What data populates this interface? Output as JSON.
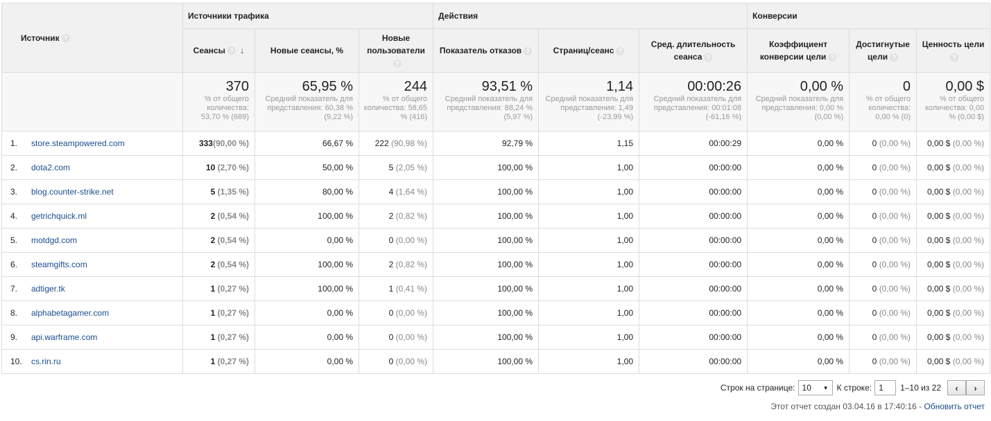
{
  "groups": {
    "source": "Источник",
    "traffic": "Источники трафика",
    "actions": "Действия",
    "conversions": "Конверсии"
  },
  "columns": [
    "Сеансы",
    "Новые сеансы, %",
    "Новые пользователи",
    "Показатель отказов",
    "Страниц/сеанс",
    "Сред. длительность сеанса",
    "Коэффициент конверсии цели",
    "Достигнутые цели",
    "Ценность цели"
  ],
  "totals": [
    {
      "big": "370",
      "sub": "% от общего количества: 53,70 % (689)"
    },
    {
      "big": "65,95 %",
      "sub": "Средний показатель для представления: 60,38 % (9,22 %)"
    },
    {
      "big": "244",
      "sub": "% от общего количества: 58,65 % (416)"
    },
    {
      "big": "93,51 %",
      "sub": "Средний показатель для представления: 88,24 % (5,97 %)"
    },
    {
      "big": "1,14",
      "sub": "Средний показатель для представления: 1,49 (-23,99 %)"
    },
    {
      "big": "00:00:26",
      "sub": "Средний показатель для представления: 00:01:08 (-61,16 %)"
    },
    {
      "big": "0,00 %",
      "sub": "Средний показатель для представления: 0,00 % (0,00 %)"
    },
    {
      "big": "0",
      "sub": "% от общего количества: 0,00 % (0)"
    },
    {
      "big": "0,00 $",
      "sub": "% от общего количества: 0,00 % (0,00 $)"
    }
  ],
  "rows": [
    {
      "num": "1.",
      "source": "store.steampowered.com",
      "sessions": "333",
      "sessions_pct": "(90,00 %)",
      "new_sessions": "66,67 %",
      "new_users": "222",
      "new_users_pct": "(90,98 %)",
      "bounce": "92,79 %",
      "pages": "1,15",
      "duration": "00:00:29",
      "conv": "0,00 %",
      "goals": "0",
      "goals_pct": "(0,00 %)",
      "value": "0,00 $",
      "value_pct": "(0,00 %)"
    },
    {
      "num": "2.",
      "source": "dota2.com",
      "sessions": "10",
      "sessions_pct": "(2,70 %)",
      "new_sessions": "50,00 %",
      "new_users": "5",
      "new_users_pct": "(2,05 %)",
      "bounce": "100,00 %",
      "pages": "1,00",
      "duration": "00:00:00",
      "conv": "0,00 %",
      "goals": "0",
      "goals_pct": "(0,00 %)",
      "value": "0,00 $",
      "value_pct": "(0,00 %)"
    },
    {
      "num": "3.",
      "source": "blog.counter-strike.net",
      "sessions": "5",
      "sessions_pct": "(1,35 %)",
      "new_sessions": "80,00 %",
      "new_users": "4",
      "new_users_pct": "(1,64 %)",
      "bounce": "100,00 %",
      "pages": "1,00",
      "duration": "00:00:00",
      "conv": "0,00 %",
      "goals": "0",
      "goals_pct": "(0,00 %)",
      "value": "0,00 $",
      "value_pct": "(0,00 %)"
    },
    {
      "num": "4.",
      "source": "getrichquick.ml",
      "sessions": "2",
      "sessions_pct": "(0,54 %)",
      "new_sessions": "100,00 %",
      "new_users": "2",
      "new_users_pct": "(0,82 %)",
      "bounce": "100,00 %",
      "pages": "1,00",
      "duration": "00:00:00",
      "conv": "0,00 %",
      "goals": "0",
      "goals_pct": "(0,00 %)",
      "value": "0,00 $",
      "value_pct": "(0,00 %)"
    },
    {
      "num": "5.",
      "source": "motdgd.com",
      "sessions": "2",
      "sessions_pct": "(0,54 %)",
      "new_sessions": "0,00 %",
      "new_users": "0",
      "new_users_pct": "(0,00 %)",
      "bounce": "100,00 %",
      "pages": "1,00",
      "duration": "00:00:00",
      "conv": "0,00 %",
      "goals": "0",
      "goals_pct": "(0,00 %)",
      "value": "0,00 $",
      "value_pct": "(0,00 %)"
    },
    {
      "num": "6.",
      "source": "steamgifts.com",
      "sessions": "2",
      "sessions_pct": "(0,54 %)",
      "new_sessions": "100,00 %",
      "new_users": "2",
      "new_users_pct": "(0,82 %)",
      "bounce": "100,00 %",
      "pages": "1,00",
      "duration": "00:00:00",
      "conv": "0,00 %",
      "goals": "0",
      "goals_pct": "(0,00 %)",
      "value": "0,00 $",
      "value_pct": "(0,00 %)"
    },
    {
      "num": "7.",
      "source": "adtiger.tk",
      "sessions": "1",
      "sessions_pct": "(0,27 %)",
      "new_sessions": "100,00 %",
      "new_users": "1",
      "new_users_pct": "(0,41 %)",
      "bounce": "100,00 %",
      "pages": "1,00",
      "duration": "00:00:00",
      "conv": "0,00 %",
      "goals": "0",
      "goals_pct": "(0,00 %)",
      "value": "0,00 $",
      "value_pct": "(0,00 %)"
    },
    {
      "num": "8.",
      "source": "alphabetagamer.com",
      "sessions": "1",
      "sessions_pct": "(0,27 %)",
      "new_sessions": "0,00 %",
      "new_users": "0",
      "new_users_pct": "(0,00 %)",
      "bounce": "100,00 %",
      "pages": "1,00",
      "duration": "00:00:00",
      "conv": "0,00 %",
      "goals": "0",
      "goals_pct": "(0,00 %)",
      "value": "0,00 $",
      "value_pct": "(0,00 %)"
    },
    {
      "num": "9.",
      "source": "api.warframe.com",
      "sessions": "1",
      "sessions_pct": "(0,27 %)",
      "new_sessions": "0,00 %",
      "new_users": "0",
      "new_users_pct": "(0,00 %)",
      "bounce": "100,00 %",
      "pages": "1,00",
      "duration": "00:00:00",
      "conv": "0,00 %",
      "goals": "0",
      "goals_pct": "(0,00 %)",
      "value": "0,00 $",
      "value_pct": "(0,00 %)"
    },
    {
      "num": "10.",
      "source": "cs.rin.ru",
      "sessions": "1",
      "sessions_pct": "(0,27 %)",
      "new_sessions": "0,00 %",
      "new_users": "0",
      "new_users_pct": "(0,00 %)",
      "bounce": "100,00 %",
      "pages": "1,00",
      "duration": "00:00:00",
      "conv": "0,00 %",
      "goals": "0",
      "goals_pct": "(0,00 %)",
      "value": "0,00 $",
      "value_pct": "(0,00 %)"
    }
  ],
  "pagination": {
    "rows_label": "Строк на странице:",
    "rows_value": "10",
    "goto_label": "К строке:",
    "goto_value": "1",
    "range": "1–10 из 22",
    "prev_glyph": "‹",
    "next_glyph": "›"
  },
  "footer": {
    "created": "Этот отчет создан 03.04.16 в 17:40:16 -",
    "refresh": "Обновить отчет"
  }
}
